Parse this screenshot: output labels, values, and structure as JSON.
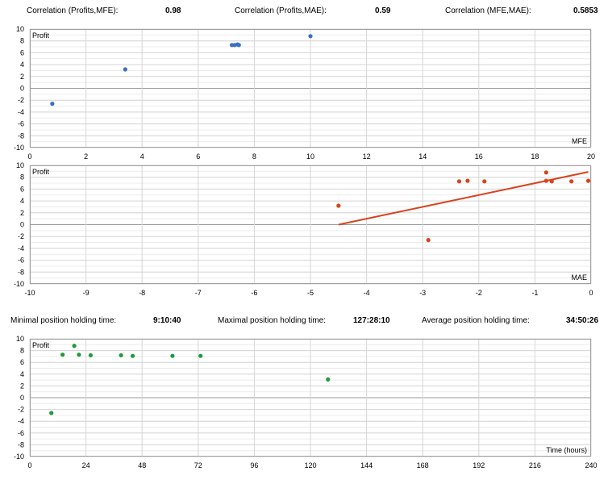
{
  "correlations": [
    {
      "label": "Correlation (Profits,MFE):",
      "value": "0.98"
    },
    {
      "label": "Correlation (Profits,MAE):",
      "value": "0.59"
    },
    {
      "label": "Correlation (MFE,MAE):",
      "value": "0.5853"
    }
  ],
  "holding_times": [
    {
      "label": "Minimal position holding time:",
      "value": "9:10:40"
    },
    {
      "label": "Maximal position holding time:",
      "value": "127:28:10"
    },
    {
      "label": "Average position holding time:",
      "value": "34:50:26"
    }
  ],
  "colors": {
    "mfe": "#3a6fc4",
    "mae": "#d9431c",
    "time": "#1f9b3a",
    "grid": "#d6d6d6",
    "border": "#a0a0a0"
  },
  "chart_data": [
    {
      "type": "scatter",
      "ylabel": "Profit",
      "xlabel": "MFE",
      "xlim": [
        0,
        20
      ],
      "ylim": [
        -10,
        10
      ],
      "xticks": [
        0,
        2,
        4,
        6,
        8,
        10,
        12,
        14,
        16,
        18,
        20
      ],
      "yticks": [
        10,
        8,
        6,
        4,
        2,
        0,
        -2,
        -4,
        -6,
        -8,
        -10
      ],
      "grid": true,
      "points": [
        [
          0.8,
          -2.6
        ],
        [
          3.4,
          3.2
        ],
        [
          7.2,
          7.3
        ],
        [
          7.3,
          7.3
        ],
        [
          7.4,
          7.4
        ],
        [
          7.45,
          7.3
        ],
        [
          10.0,
          8.8
        ]
      ]
    },
    {
      "type": "scatter",
      "ylabel": "Profit",
      "xlabel": "MAE",
      "xlim": [
        -10,
        0
      ],
      "ylim": [
        -10,
        10
      ],
      "xticks": [
        -10,
        -9,
        -8,
        -7,
        -6,
        -5,
        -4,
        -3,
        -2,
        -1,
        0
      ],
      "yticks": [
        10,
        8,
        6,
        4,
        2,
        0,
        -2,
        -4,
        -6,
        -8,
        -10
      ],
      "grid": true,
      "points": [
        [
          -4.5,
          3.2
        ],
        [
          -2.9,
          -2.6
        ],
        [
          -2.35,
          7.3
        ],
        [
          -2.2,
          7.4
        ],
        [
          -1.9,
          7.3
        ],
        [
          -0.8,
          8.8
        ],
        [
          -0.8,
          7.4
        ],
        [
          -0.7,
          7.3
        ],
        [
          -0.35,
          7.3
        ],
        [
          -0.05,
          7.4
        ]
      ],
      "trendline": [
        [
          -4.5,
          0.0
        ],
        [
          -0.05,
          8.9
        ]
      ]
    },
    {
      "type": "scatter",
      "ylabel": "Profit",
      "xlabel": "Time (hours)",
      "xlim": [
        0,
        240
      ],
      "ylim": [
        -10,
        10
      ],
      "xticks": [
        0,
        24,
        48,
        72,
        96,
        120,
        144,
        168,
        192,
        216,
        240
      ],
      "yticks": [
        10,
        8,
        6,
        4,
        2,
        0,
        -2,
        -4,
        -6,
        -8,
        -10
      ],
      "grid": true,
      "points": [
        [
          9.2,
          -2.6
        ],
        [
          14,
          7.3
        ],
        [
          19,
          8.8
        ],
        [
          21,
          7.3
        ],
        [
          26,
          7.2
        ],
        [
          39,
          7.2
        ],
        [
          44,
          7.1
        ],
        [
          61,
          7.1
        ],
        [
          73,
          7.1
        ],
        [
          127.5,
          3.1
        ]
      ]
    }
  ]
}
